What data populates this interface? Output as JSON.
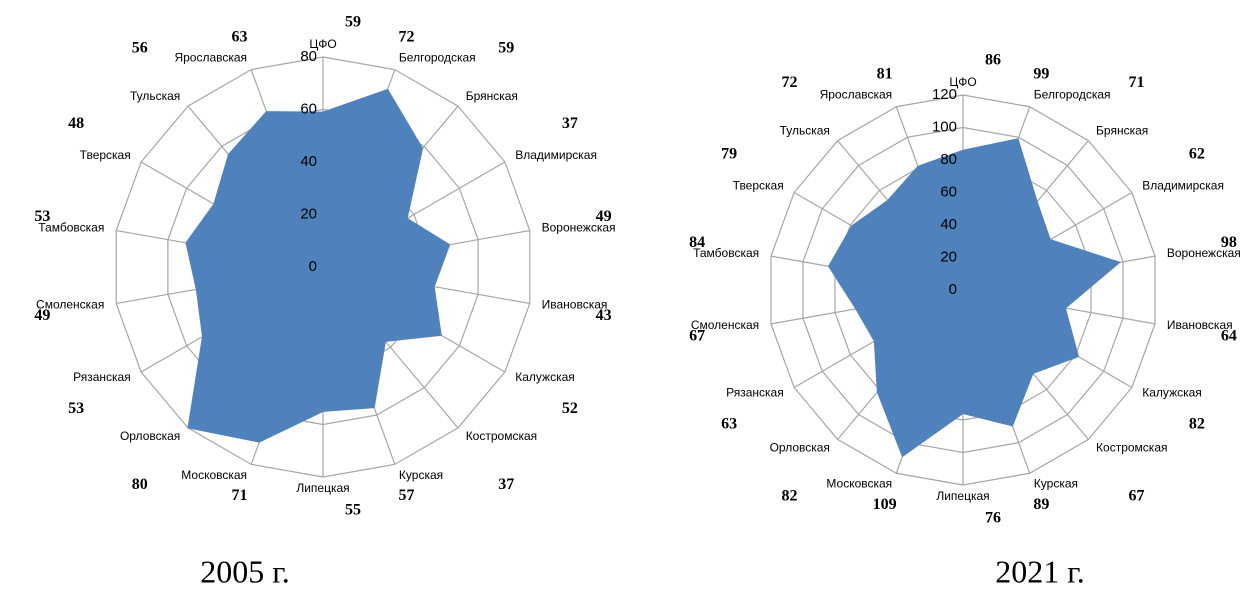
{
  "chart_data": [
    {
      "type": "radar",
      "caption": "2005 г.",
      "categories": [
        "ЦФО",
        "Белгородская",
        "Брянская",
        "Владимирская",
        "Воронежская",
        "Ивановская",
        "Калужская",
        "Костромская",
        "Курская",
        "Липецкая",
        "Московская",
        "Орловская",
        "Рязанская",
        "Смоленская",
        "Тамбовская",
        "Тверская",
        "Тульская",
        "Ярославская"
      ],
      "values": [
        59,
        72,
        59,
        37,
        49,
        43,
        52,
        37,
        57,
        55,
        71,
        80,
        53,
        49,
        53,
        48,
        56,
        63
      ],
      "color": "#4f81bd",
      "ylim": [
        0,
        80
      ],
      "yticks": [
        0,
        20,
        40,
        60,
        80
      ],
      "grid": true
    },
    {
      "type": "radar",
      "caption": "2021 г.",
      "categories": [
        "ЦФО",
        "Белгородская",
        "Брянская",
        "Владимирская",
        "Воронежская",
        "Ивановская",
        "Калужская",
        "Костромская",
        "Курская",
        "Липецкая",
        "Московская",
        "Орловская",
        "Рязанская",
        "Смоленская",
        "Тамбовская",
        "Тверская",
        "Тульская",
        "Ярославская"
      ],
      "values": [
        86,
        99,
        71,
        62,
        98,
        64,
        82,
        67,
        89,
        76,
        109,
        82,
        63,
        67,
        84,
        79,
        72,
        81
      ],
      "color": "#4f81bd",
      "ylim": [
        0,
        120
      ],
      "yticks": [
        0,
        20,
        40,
        60,
        80,
        100,
        120
      ],
      "grid": true
    }
  ]
}
